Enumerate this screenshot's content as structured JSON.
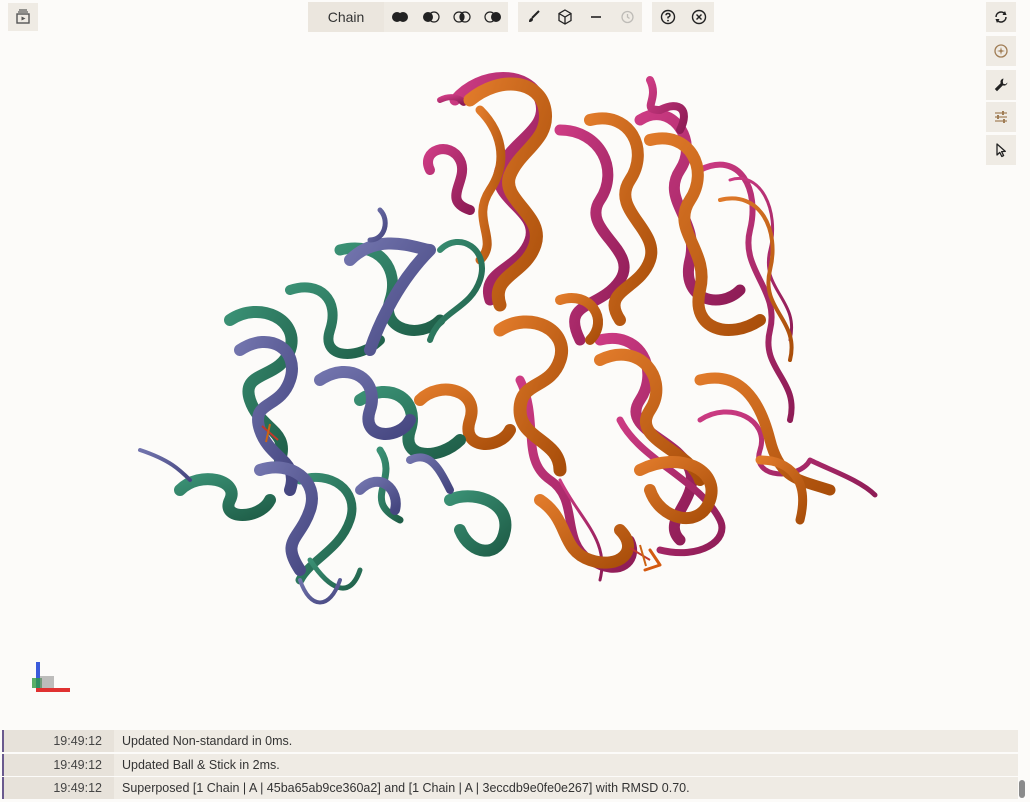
{
  "toolbar": {
    "color_theme_label": "Chain",
    "left_button_icon": "animation-icon",
    "buttons": [
      "selection-mode-icon",
      "union-icon",
      "subtract-icon",
      "intersect-icon",
      "set-icon",
      "color-brush-icon",
      "cube-icon",
      "minus-icon",
      "history-icon",
      "help-icon",
      "close-icon"
    ]
  },
  "right_panel": {
    "icons": [
      "reset-camera-icon",
      "spin-icon",
      "settings-wrench-icon",
      "sliders-icon",
      "select-pointer-icon"
    ]
  },
  "log": [
    {
      "time": "19:49:12",
      "message": "Updated Non-standard in 0ms."
    },
    {
      "time": "19:49:12",
      "message": "Updated Ball & Stick in 2ms."
    },
    {
      "time": "19:49:12",
      "message": "Superposed [1 Chain | A | 45ba65ab9ce360a2] and [1 Chain | A | 3eccdb9e0fe0e267] with RMSD 0.70."
    }
  ],
  "colors": {
    "chain_green": "#2e7d63",
    "chain_purple": "#5d5e99",
    "chain_orange": "#cc6413",
    "chain_magenta": "#b5276f",
    "background": "#fcfbf9",
    "panel": "#efebe4"
  }
}
